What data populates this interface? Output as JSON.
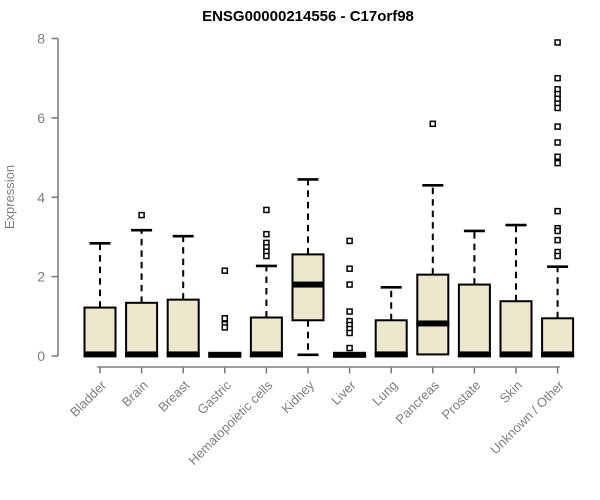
{
  "chart_data": {
    "type": "boxplot",
    "title": "ENSG00000214556 - C17orf98",
    "ylabel": "Expression",
    "xlabel": "",
    "ylim": [
      0,
      8
    ],
    "yticks": [
      0,
      2,
      4,
      6,
      8
    ],
    "grid": false,
    "legend": false,
    "categories": [
      "Bladder",
      "Brain",
      "Breast",
      "Gastric",
      "Hematopoietic cells",
      "Kidney",
      "Liver",
      "Lung",
      "Pancreas",
      "Prostate",
      "Skin",
      "Unknown / Other"
    ],
    "boxes": [
      {
        "category": "Bladder",
        "whisker_low": 0,
        "q1": 0,
        "median": 0.04,
        "q3": 1.22,
        "whisker_high": 2.84,
        "outliers": []
      },
      {
        "category": "Brain",
        "whisker_low": 0,
        "q1": 0,
        "median": 0.04,
        "q3": 1.34,
        "whisker_high": 3.17,
        "outliers": [
          3.55
        ]
      },
      {
        "category": "Breast",
        "whisker_low": 0,
        "q1": 0,
        "median": 0.04,
        "q3": 1.42,
        "whisker_high": 3.02,
        "outliers": []
      },
      {
        "category": "Gastric",
        "whisker_low": 0,
        "q1": 0,
        "median": 0.03,
        "q3": 0.06,
        "whisker_high": 0.06,
        "outliers": [
          2.15,
          0.95,
          0.8,
          0.72
        ]
      },
      {
        "category": "Hematopoietic cells",
        "whisker_low": 0,
        "q1": 0,
        "median": 0.04,
        "q3": 0.97,
        "whisker_high": 2.27,
        "outliers": [
          3.68,
          3.07,
          2.85,
          2.74,
          2.63,
          2.52
        ]
      },
      {
        "category": "Kidney",
        "whisker_low": 0.03,
        "q1": 0.9,
        "median": 1.8,
        "q3": 2.56,
        "whisker_high": 4.45,
        "outliers": []
      },
      {
        "category": "Liver",
        "whisker_low": 0,
        "q1": 0,
        "median": 0.03,
        "q3": 0.07,
        "whisker_high": 0.07,
        "outliers": [
          2.9,
          2.2,
          1.8,
          1.12,
          0.88,
          0.78,
          0.68,
          0.58,
          0.2
        ]
      },
      {
        "category": "Lung",
        "whisker_low": 0,
        "q1": 0,
        "median": 0.04,
        "q3": 0.9,
        "whisker_high": 1.73,
        "outliers": []
      },
      {
        "category": "Pancreas",
        "whisker_low": 0.04,
        "q1": 0.04,
        "median": 0.82,
        "q3": 2.05,
        "whisker_high": 4.3,
        "outliers": [
          5.85
        ]
      },
      {
        "category": "Prostate",
        "whisker_low": 0,
        "q1": 0,
        "median": 0.04,
        "q3": 1.8,
        "whisker_high": 3.15,
        "outliers": []
      },
      {
        "category": "Skin",
        "whisker_low": 0,
        "q1": 0,
        "median": 0.04,
        "q3": 1.38,
        "whisker_high": 3.3,
        "outliers": []
      },
      {
        "category": "Unknown / Other",
        "whisker_low": 0,
        "q1": 0,
        "median": 0.04,
        "q3": 0.95,
        "whisker_high": 2.25,
        "outliers": [
          7.9,
          7.0,
          6.72,
          6.6,
          6.48,
          6.36,
          6.25,
          5.78,
          5.38,
          5.02,
          4.86,
          3.65,
          3.22,
          3.15,
          2.92,
          2.62,
          2.52
        ]
      }
    ],
    "colors": {
      "box_fill": "#ede7cb",
      "box_border": "#000000",
      "median": "#000000",
      "whisker": "#000000",
      "outlier_fill": "#ffffff",
      "axis": "#7e7e7e",
      "tick_label": "#7e7e7e",
      "title": "#000000",
      "background": "#ffffff"
    }
  }
}
